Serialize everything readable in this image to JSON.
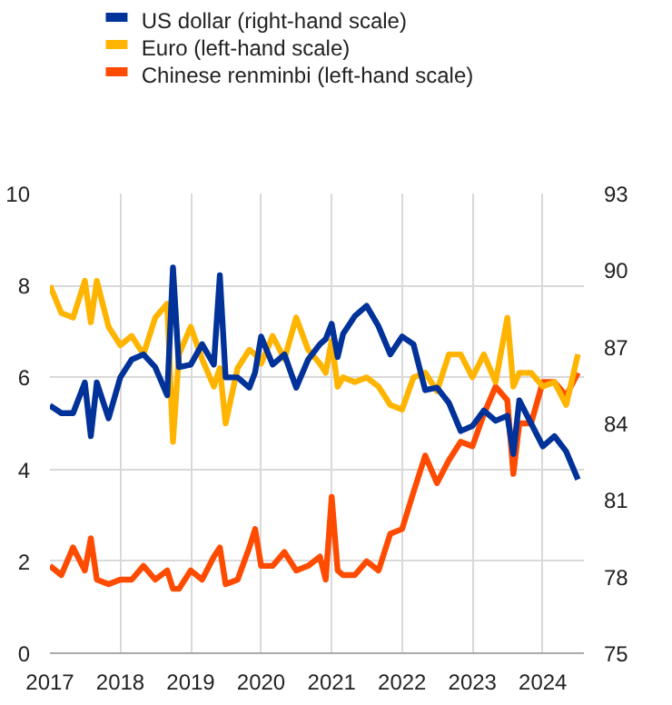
{
  "chart_data": {
    "type": "line",
    "x": [
      "2017-01",
      "2017-03",
      "2017-05",
      "2017-07",
      "2017-08",
      "2017-09",
      "2017-11",
      "2018-01",
      "2018-03",
      "2018-05",
      "2018-07",
      "2018-09",
      "2018-10",
      "2018-11",
      "2019-01",
      "2019-03",
      "2019-05",
      "2019-06",
      "2019-07",
      "2019-09",
      "2019-11",
      "2019-12",
      "2020-01",
      "2020-03",
      "2020-05",
      "2020-07",
      "2020-09",
      "2020-11",
      "2020-12",
      "2021-01",
      "2021-02",
      "2021-03",
      "2021-05",
      "2021-07",
      "2021-09",
      "2021-11",
      "2022-01",
      "2022-03",
      "2022-05",
      "2022-07",
      "2022-09",
      "2022-11",
      "2023-01",
      "2023-03",
      "2023-05",
      "2023-07",
      "2023-08",
      "2023-09",
      "2023-11",
      "2024-01",
      "2024-03",
      "2024-05",
      "2024-07"
    ],
    "series": [
      {
        "name": "US dollar (right-hand scale)",
        "color": "#003299",
        "axis": "y2",
        "values": [
          84.7,
          84.4,
          84.4,
          85.6,
          83.5,
          85.6,
          84.2,
          85.8,
          86.5,
          86.7,
          86.2,
          85.1,
          90.1,
          86.2,
          86.3,
          87.1,
          86.3,
          89.8,
          85.8,
          85.8,
          85.4,
          86.0,
          87.4,
          86.3,
          86.7,
          85.4,
          86.5,
          87.1,
          87.3,
          87.9,
          86.6,
          87.5,
          88.2,
          88.6,
          87.8,
          86.7,
          87.4,
          87.1,
          85.3,
          85.4,
          84.8,
          83.7,
          83.9,
          84.5,
          84.1,
          84.3,
          82.8,
          84.9,
          84.0,
          83.1,
          83.5,
          82.9,
          81.8
        ]
      },
      {
        "name": "Euro (left-hand scale)",
        "color": "#ffb400",
        "values": [
          8.0,
          7.4,
          7.3,
          8.1,
          7.2,
          8.1,
          7.1,
          6.7,
          6.9,
          6.5,
          7.3,
          7.6,
          4.6,
          6.5,
          7.1,
          6.4,
          5.8,
          6.2,
          5.0,
          6.2,
          6.6,
          6.5,
          6.3,
          6.9,
          6.4,
          7.3,
          6.6,
          6.3,
          6.1,
          6.8,
          5.8,
          6.0,
          5.9,
          6.0,
          5.8,
          5.4,
          5.3,
          6.0,
          6.1,
          5.7,
          6.5,
          6.5,
          6.0,
          6.5,
          5.9,
          7.3,
          5.8,
          6.1,
          6.1,
          5.8,
          5.9,
          5.4,
          6.5
        ]
      },
      {
        "name": "Chinese renminbi (left-hand scale)",
        "color": "#ff4b00",
        "values": [
          1.9,
          1.7,
          2.3,
          1.8,
          2.5,
          1.6,
          1.5,
          1.6,
          1.6,
          1.9,
          1.6,
          1.8,
          1.4,
          1.4,
          1.8,
          1.6,
          2.1,
          2.3,
          1.5,
          1.6,
          2.3,
          2.7,
          1.9,
          1.9,
          2.2,
          1.8,
          1.9,
          2.1,
          1.6,
          3.4,
          1.8,
          1.7,
          1.7,
          2.0,
          1.8,
          2.6,
          2.7,
          3.5,
          4.3,
          3.7,
          4.2,
          4.6,
          4.5,
          5.2,
          5.8,
          5.5,
          3.9,
          5.0,
          5.0,
          5.9,
          5.9,
          5.6,
          6.1
        ]
      }
    ],
    "xlim": [
      "2017-01",
      "2024-08"
    ],
    "xticks": [
      "2017",
      "2018",
      "2019",
      "2020",
      "2021",
      "2022",
      "2023",
      "2024"
    ],
    "ylim": [
      0,
      10
    ],
    "yticks": [
      0,
      2,
      4,
      6,
      8,
      10
    ],
    "y2lim": [
      75,
      93
    ],
    "y2ticks": [
      75,
      78,
      81,
      84,
      87,
      90,
      93
    ],
    "grid": true,
    "legend": "top left",
    "line_style": "solid"
  }
}
